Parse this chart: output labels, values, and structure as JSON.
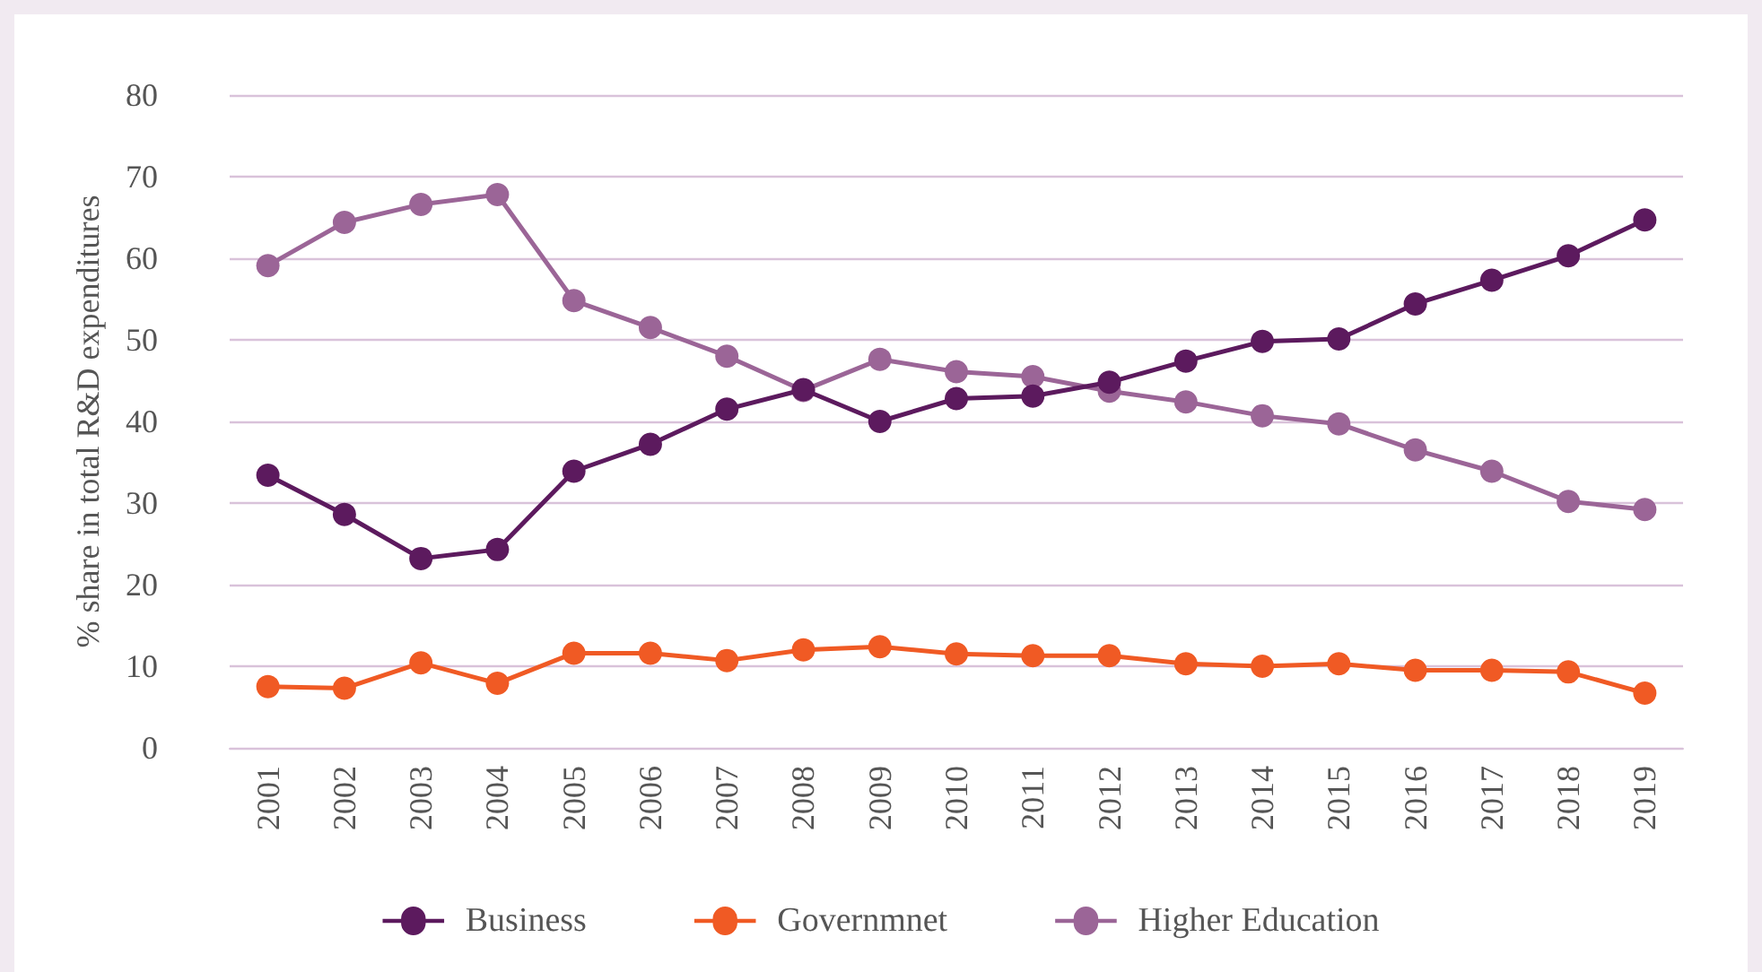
{
  "chart_data": {
    "type": "line",
    "ylabel": "% share in total R&D expenditures",
    "categories": [
      "2001",
      "2002",
      "2003",
      "2004",
      "2005",
      "2006",
      "2007",
      "2008",
      "2009",
      "2010",
      "2011",
      "2012",
      "2013",
      "2014",
      "2015",
      "2016",
      "2017",
      "2018",
      "2019"
    ],
    "series": [
      {
        "name": "Business",
        "color": "#5c1a5e",
        "values": [
          33.4,
          28.6,
          23.2,
          24.3,
          33.9,
          37.2,
          41.5,
          43.9,
          40,
          42.8,
          43.1,
          44.8,
          47.4,
          49.8,
          50.1,
          54.4,
          57.3,
          60.3,
          64.7
        ]
      },
      {
        "name": "Governmnet",
        "color": "#f05a24",
        "values": [
          7.5,
          7.3,
          10.4,
          7.9,
          11.6,
          11.6,
          10.7,
          12,
          12.4,
          11.5,
          11.3,
          11.3,
          10.3,
          10,
          10.3,
          9.5,
          9.5,
          9.3,
          6.7
        ]
      },
      {
        "name": "Higher Education",
        "color": "#9b6597",
        "values": [
          59.1,
          64.4,
          66.6,
          67.8,
          54.8,
          51.5,
          48,
          43.8,
          47.6,
          46.1,
          45.5,
          43.7,
          42.4,
          40.7,
          39.7,
          36.5,
          33.9,
          30.2,
          29.2
        ]
      }
    ],
    "ylim": [
      0,
      80
    ],
    "yticks": [
      0,
      10,
      20,
      30,
      40,
      50,
      60,
      70,
      80
    ],
    "grid": "y",
    "legend": "bottom",
    "marker": "circle",
    "line_style": "solid"
  }
}
